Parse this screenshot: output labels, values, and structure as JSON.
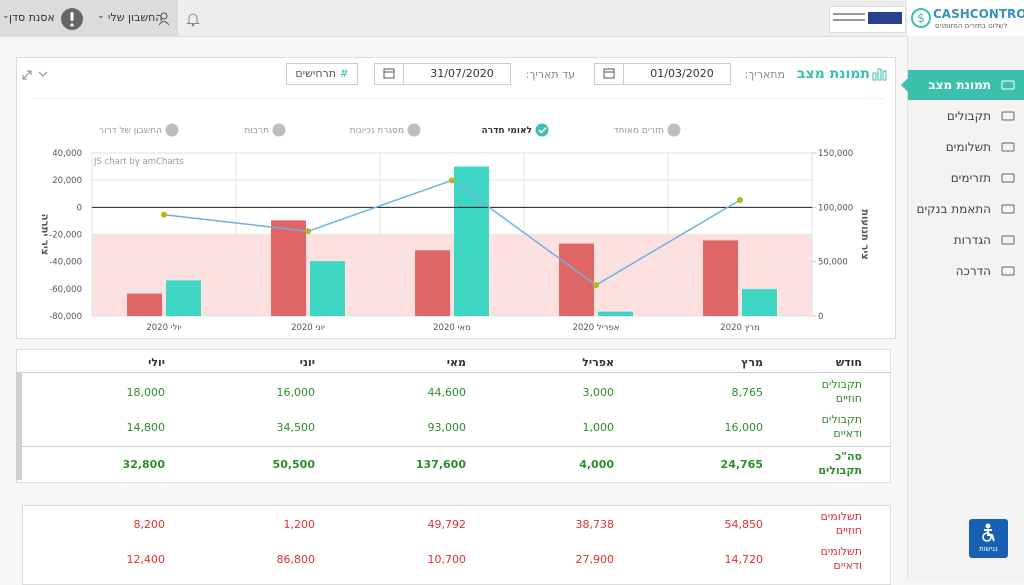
{
  "topbar": {
    "user": "אסנת סדן",
    "account": "החשבון שלי",
    "logo": "CASHCONTROL",
    "slogan": "לשלוט בתזרים המזומנים"
  },
  "sidebar": {
    "items": [
      "תמונת מצב",
      "תקבולים",
      "תשלומים",
      "תזרימים",
      "התאמת בנקים",
      "הגדרות",
      "הדרכה"
    ],
    "active": 0,
    "accessibility": "נגישות"
  },
  "toolbar": {
    "title": "תמונת מצב",
    "from_label": "מתאריך:",
    "from": "01/03/2020",
    "to_label": "עד תאריך:",
    "to": "31/07/2020",
    "scenarios": "תרחישים"
  },
  "accounts": [
    {
      "label": "תזרים מאוחד",
      "checked": false
    },
    {
      "label": "לאומי חדרה",
      "checked": true
    },
    {
      "label": "מסגרת נכיונות",
      "checked": false
    },
    {
      "label": "תרבות",
      "checked": false
    },
    {
      "label": "החשבון של דרור",
      "checked": false
    }
  ],
  "chart_data": {
    "type": "combo",
    "credit": "JS chart by amCharts",
    "categories": [
      "יולי 2020",
      "יוני 2020",
      "מאי 2020",
      "אפריל 2020",
      "מרץ 2020"
    ],
    "series": [
      {
        "type": "bar",
        "color": "#e06666",
        "axis": "y2",
        "values": [
          20600,
          88000,
          60492,
          66638,
          69570
        ]
      },
      {
        "type": "bar",
        "color": "#40d6c4",
        "axis": "y2",
        "values": [
          32800,
          50500,
          137600,
          4000,
          24765
        ]
      },
      {
        "type": "line",
        "color": "#6db3df",
        "marker_color": "#b8b41c",
        "values": [
          -5430,
          -17630,
          19870,
          -57238,
          5400
        ]
      }
    ],
    "ylabel": "ציר יתרה",
    "y2label": "ציר תנועות",
    "ylim": [
      -80000,
      40000
    ],
    "yticks": [
      {
        "value": -80000,
        "label": "-80,000"
      },
      {
        "value": -60000,
        "label": "-60,000"
      },
      {
        "value": -40000,
        "label": "-40,000"
      },
      {
        "value": -20000,
        "label": "-20,000"
      },
      0,
      {
        "value": 20000,
        "label": "20,000"
      },
      {
        "value": 40000,
        "label": "40,000"
      }
    ],
    "y2lim": [
      0,
      150000
    ],
    "y2ticks": [
      0,
      {
        "value": 50000,
        "label": "50,000"
      },
      {
        "value": 100000,
        "label": "100,000"
      },
      {
        "value": 150000,
        "label": "150,000"
      }
    ],
    "limit": -20000,
    "limit_color": "#fde0e0",
    "zero_line": true,
    "grid": true
  },
  "table": {
    "header": [
      "חודש",
      "מרץ",
      "אפריל",
      "מאי",
      "יוני",
      "יולי"
    ],
    "groups": [
      {
        "color": "#2e8b2e",
        "rows": [
          {
            "label": "תקבולים חוזיים",
            "cells": [
              "8,765",
              "3,000",
              "44,600",
              "16,000",
              "18,000"
            ],
            "bold": false
          },
          {
            "label": "תקבולים ודאיים",
            "cells": [
              "16,000",
              "1,000",
              "93,000",
              "34,500",
              "14,800"
            ],
            "bold": false
          },
          {
            "label": "סה\"כ תקבולים",
            "cells": [
              "24,765",
              "4,000",
              "137,600",
              "50,500",
              "32,800"
            ],
            "bold": true
          }
        ]
      },
      {
        "color": "#e03030",
        "rows": [
          {
            "label": "תשלומים חוזיים",
            "cells": [
              "54,850",
              "38,738",
              "49,792",
              "1,200",
              "8,200"
            ],
            "bold": false
          },
          {
            "label": "תשלומים ודאיים",
            "cells": [
              "14,720",
              "27,900",
              "10,700",
              "86,800",
              "12,400"
            ],
            "bold": false
          }
        ]
      }
    ]
  }
}
